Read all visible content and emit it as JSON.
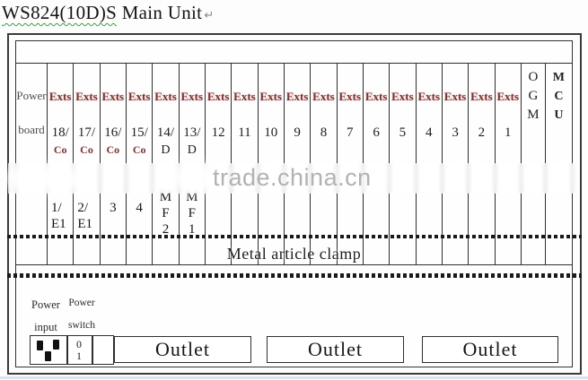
{
  "title": {
    "main": "WS824(10D)S",
    "rest": " Main Unit",
    "return_mark": "↵"
  },
  "watermark": {
    "text": "trade.china.cn"
  },
  "labels": {
    "metal_clamp": "Metal article clamp"
  },
  "slots": [
    {
      "kind": "power",
      "lines": [
        "Power",
        "board"
      ]
    },
    {
      "kind": "ext",
      "tag": "Exts",
      "num": "18/",
      "sub": "Co",
      "sub_style": "maroon",
      "lower": [
        "1/",
        "E1"
      ],
      "lower_align": "left"
    },
    {
      "kind": "ext",
      "tag": "Exts",
      "num": "17/",
      "sub": "Co",
      "sub_style": "maroon",
      "lower": [
        "2/",
        "E1"
      ],
      "lower_align": "left"
    },
    {
      "kind": "ext",
      "tag": "Exts",
      "num": "16/",
      "sub": "Co",
      "sub_style": "maroon",
      "lower": [
        "3"
      ]
    },
    {
      "kind": "ext",
      "tag": "Exts",
      "num": "15/",
      "sub": "Co",
      "sub_style": "maroon",
      "lower": [
        "4"
      ]
    },
    {
      "kind": "ext",
      "tag": "Exts",
      "num": "14/",
      "sub": "D",
      "sub_style": "black",
      "lower": [
        "M",
        "F",
        "2"
      ]
    },
    {
      "kind": "ext",
      "tag": "Exts",
      "num": "13/",
      "sub": "D",
      "sub_style": "black",
      "lower": [
        "M",
        "F",
        "1"
      ]
    },
    {
      "kind": "ext",
      "tag": "Exts",
      "num": "12"
    },
    {
      "kind": "ext",
      "tag": "Exts",
      "num": "11"
    },
    {
      "kind": "ext",
      "tag": "Exts",
      "num": "10"
    },
    {
      "kind": "ext",
      "tag": "Exts",
      "num": "9"
    },
    {
      "kind": "ext",
      "tag": "Exts",
      "num": "8"
    },
    {
      "kind": "ext",
      "tag": "Exts",
      "num": "7"
    },
    {
      "kind": "ext",
      "tag": "Exts",
      "num": "6"
    },
    {
      "kind": "ext",
      "tag": "Exts",
      "num": "5"
    },
    {
      "kind": "ext",
      "tag": "Exts",
      "num": "4"
    },
    {
      "kind": "ext",
      "tag": "Exts",
      "num": "3"
    },
    {
      "kind": "ext",
      "tag": "Exts",
      "num": "2"
    },
    {
      "kind": "ext",
      "tag": "Exts",
      "num": "1"
    },
    {
      "kind": "vertical",
      "letters": "OGM",
      "bold": false
    },
    {
      "kind": "vertical",
      "letters": "MCU",
      "bold": true
    }
  ],
  "bottom": {
    "power_input_label": "Power\ninput",
    "power_switch_label": "Power\nswitch",
    "switch_values": "0\n1",
    "outlets": [
      "Outlet",
      "Outlet",
      "Outlet"
    ]
  },
  "colors": {
    "exts_text": "#7b3434",
    "line": "#2e2e2e",
    "watermark": "#b2b2b2",
    "spellcheck_underline": "#3aa03a"
  }
}
